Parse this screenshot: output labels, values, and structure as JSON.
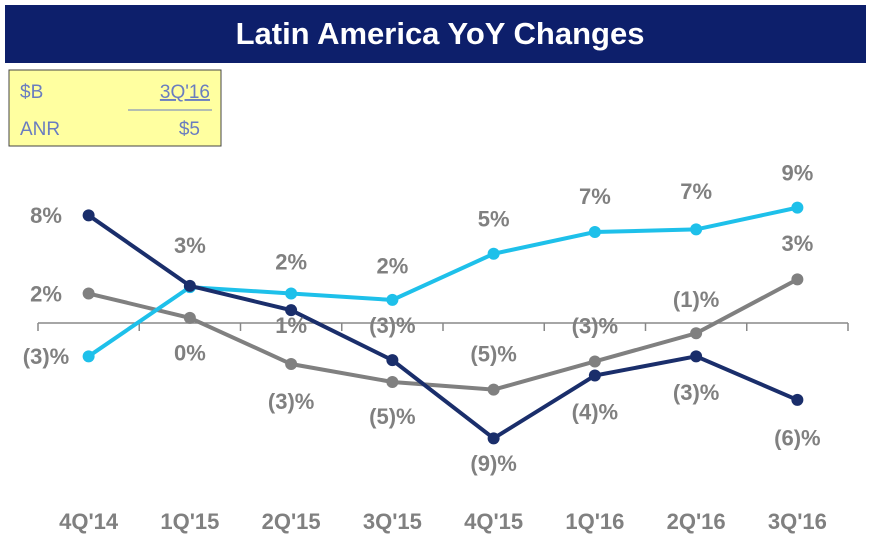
{
  "chart_data": {
    "type": "line",
    "title": "Latin America YoY Changes",
    "table": {
      "header": [
        "$B",
        "3Q'16"
      ],
      "row": [
        "ANR",
        "$5"
      ]
    },
    "categories": [
      "4Q'14",
      "1Q'15",
      "2Q'15",
      "3Q'15",
      "4Q'15",
      "1Q'16",
      "2Q'16",
      "3Q'16"
    ],
    "series": [
      {
        "color": "#1ec0ea",
        "values": [
          -2.6,
          2.8,
          2.3,
          1.8,
          5.4,
          7.1,
          7.3,
          9.0
        ],
        "value_labels": [
          "(3)%",
          "3%",
          "2%",
          "2%",
          "5%",
          "7%",
          "7%",
          "9%"
        ]
      },
      {
        "color": "#1a2e6b",
        "values": [
          8.4,
          2.9,
          1.0,
          -2.9,
          -9.0,
          -4.1,
          -2.6,
          -6.0
        ],
        "value_labels": [
          "8%",
          null,
          "1%",
          "(3)%",
          "(9)%",
          "(4)%",
          "(3)%",
          "(6)%"
        ]
      },
      {
        "color": "#808080",
        "values": [
          2.3,
          0.4,
          -3.2,
          -4.6,
          -5.2,
          -3.0,
          -0.8,
          3.4
        ],
        "value_labels": [
          "2%",
          "0%",
          "(3)%",
          "(5)%",
          "(5)%",
          "(3)%",
          "(1)%",
          "3%"
        ]
      }
    ],
    "ylim": [
      -11,
      11
    ]
  }
}
